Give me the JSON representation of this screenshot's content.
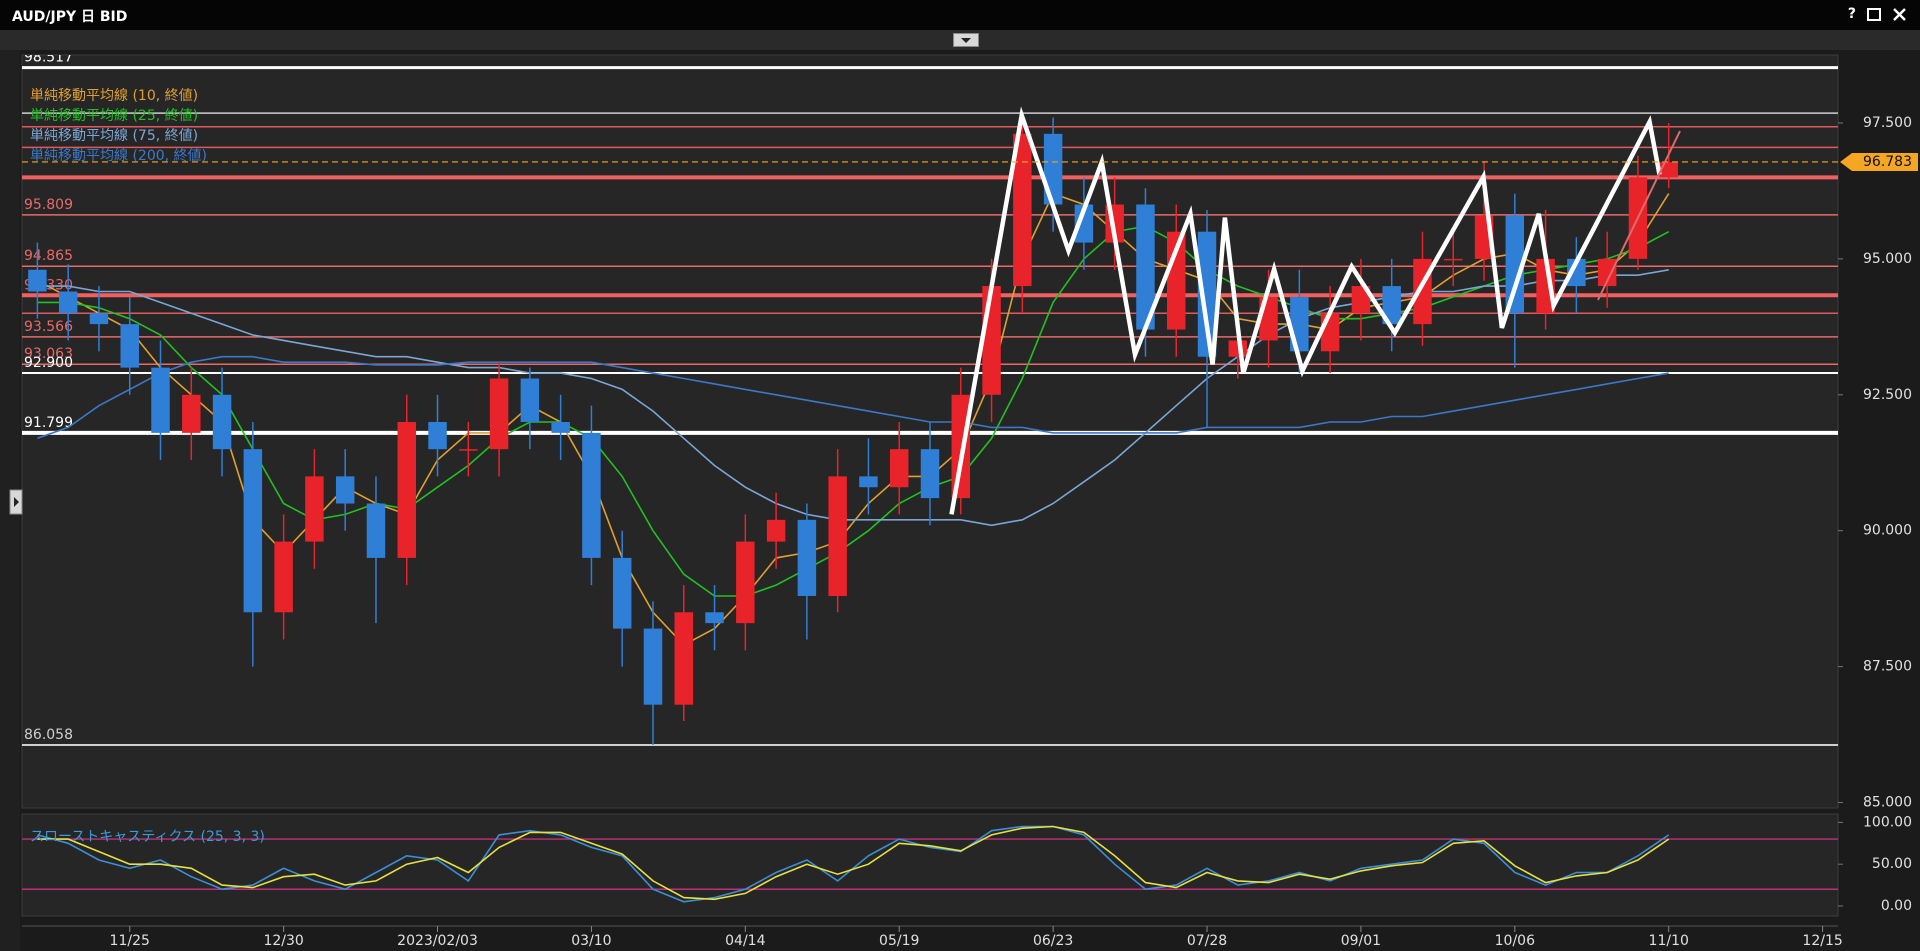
{
  "window": {
    "title": "AUD/JPY 日 BID",
    "help": "?"
  },
  "chart_data": [
    {
      "type": "candlestick",
      "categories": [
        null,
        null,
        null,
        "11/25",
        null,
        null,
        null,
        null,
        "12/30",
        null,
        null,
        null,
        null,
        "2023/02/03",
        null,
        null,
        null,
        null,
        "03/10",
        null,
        null,
        null,
        null,
        "04/14",
        null,
        null,
        null,
        null,
        "05/19",
        null,
        null,
        null,
        null,
        "06/23",
        null,
        null,
        null,
        null,
        "07/28",
        null,
        null,
        null,
        null,
        "09/01",
        null,
        null,
        null,
        null,
        "10/06",
        null,
        null,
        null,
        null,
        "11/10",
        null,
        null,
        null,
        null,
        "12/15"
      ],
      "open": [
        94.8,
        94.4,
        94.0,
        93.8,
        93.0,
        91.8,
        92.5,
        91.5,
        88.5,
        89.8,
        91.0,
        90.5,
        89.5,
        92.0,
        91.5,
        91.5,
        92.8,
        92.0,
        91.8,
        89.5,
        88.2,
        86.8,
        88.5,
        88.3,
        89.8,
        90.2,
        88.8,
        91.0,
        90.8,
        91.5,
        90.6,
        92.5,
        94.5,
        97.3,
        96.0,
        95.3,
        96.0,
        93.7,
        95.5,
        93.2,
        93.5,
        94.3,
        93.3,
        94.0,
        94.5,
        93.8,
        95.0,
        95.0,
        95.8,
        94.0,
        95.0,
        94.5,
        95.0,
        96.5,
        null,
        null,
        null,
        null,
        null
      ],
      "high": [
        95.3,
        94.9,
        94.5,
        94.3,
        93.5,
        93.0,
        93.0,
        92.0,
        90.3,
        91.5,
        91.5,
        91.0,
        92.5,
        92.5,
        92.0,
        93.1,
        93.0,
        92.5,
        92.3,
        90.0,
        88.7,
        89.0,
        89.0,
        90.3,
        90.7,
        90.5,
        91.5,
        91.7,
        92.0,
        92.0,
        93.0,
        95.0,
        97.7,
        97.6,
        96.5,
        96.5,
        96.3,
        96.0,
        95.9,
        94.0,
        94.8,
        94.8,
        94.5,
        95.0,
        95.0,
        95.5,
        95.6,
        96.8,
        96.2,
        95.9,
        95.4,
        95.5,
        96.9,
        97.5,
        null,
        null,
        null,
        null,
        null
      ],
      "low": [
        93.9,
        93.5,
        93.3,
        92.5,
        91.3,
        91.3,
        91.0,
        87.5,
        88.0,
        89.3,
        90.0,
        88.3,
        89.0,
        91.0,
        91.0,
        91.0,
        91.5,
        91.3,
        89.0,
        87.5,
        86.06,
        86.5,
        87.8,
        87.8,
        89.3,
        88.0,
        88.5,
        90.3,
        90.3,
        90.1,
        90.3,
        92.0,
        94.0,
        95.5,
        94.8,
        94.8,
        93.2,
        93.2,
        91.9,
        92.8,
        93.0,
        92.9,
        92.9,
        93.5,
        93.3,
        93.4,
        94.5,
        94.6,
        93.0,
        93.7,
        94.0,
        94.1,
        94.8,
        96.3,
        null,
        null,
        null,
        null,
        null
      ],
      "close": [
        94.4,
        94.0,
        93.8,
        93.0,
        91.8,
        92.5,
        91.5,
        88.5,
        89.8,
        91.0,
        90.5,
        89.5,
        92.0,
        91.5,
        91.5,
        92.8,
        92.0,
        91.8,
        89.5,
        88.2,
        86.8,
        88.5,
        88.3,
        89.8,
        90.2,
        88.8,
        91.0,
        90.8,
        91.5,
        90.6,
        92.5,
        94.5,
        97.3,
        96.0,
        95.3,
        96.0,
        93.7,
        95.5,
        93.2,
        93.5,
        94.3,
        93.3,
        94.0,
        94.5,
        93.8,
        95.0,
        95.0,
        95.8,
        94.0,
        95.0,
        94.5,
        95.0,
        96.5,
        96.78,
        null,
        null,
        null,
        null,
        null
      ],
      "up_color": "#e8242a",
      "down_color": "#2f7fd6",
      "ylim": [
        84.9,
        98.75
      ],
      "yticks": [
        {
          "value": 97.5,
          "label": "97.500"
        },
        {
          "value": 95,
          "label": "95.000"
        },
        {
          "value": 92.5,
          "label": "92.500"
        },
        {
          "value": 90,
          "label": "90.000"
        },
        {
          "value": 87.5,
          "label": "87.500"
        },
        {
          "value": 85,
          "label": "85.000"
        }
      ],
      "last_price": 96.783,
      "last_color": "#f5a623",
      "series": [
        {
          "name": "単純移動平均線 (10, 終値)",
          "color": "#e0a030",
          "values": [
            94.6,
            94.3,
            94.0,
            93.7,
            93.0,
            92.5,
            92.0,
            90.2,
            89.6,
            90.2,
            90.8,
            90.5,
            90.3,
            91.3,
            91.8,
            91.8,
            92.3,
            92.0,
            91.0,
            89.5,
            88.5,
            87.9,
            88.2,
            88.8,
            89.5,
            89.6,
            89.8,
            90.5,
            91.0,
            91.0,
            91.5,
            92.8,
            95.0,
            96.2,
            96.0,
            95.5,
            95.0,
            94.8,
            94.6,
            93.9,
            93.8,
            93.8,
            93.7,
            94.1,
            94.2,
            94.3,
            94.7,
            95.0,
            95.1,
            94.8,
            94.7,
            94.8,
            95.3,
            96.2,
            null,
            null,
            null,
            null,
            null
          ]
        },
        {
          "name": "単純移動平均線 (25, 終値)",
          "color": "#22c022",
          "values": [
            94.2,
            94.2,
            94.1,
            93.9,
            93.6,
            93.0,
            92.5,
            91.5,
            90.5,
            90.2,
            90.3,
            90.5,
            90.4,
            90.8,
            91.2,
            91.7,
            92.0,
            92.0,
            91.7,
            91.0,
            90.0,
            89.2,
            88.8,
            88.8,
            89.0,
            89.3,
            89.6,
            90.0,
            90.5,
            90.8,
            91.0,
            91.7,
            92.8,
            94.2,
            95.0,
            95.5,
            95.6,
            95.3,
            94.8,
            94.5,
            94.3,
            94.1,
            93.9,
            93.9,
            94.0,
            94.1,
            94.3,
            94.5,
            94.7,
            94.8,
            94.9,
            95.0,
            95.2,
            95.5,
            null,
            null,
            null,
            null,
            null
          ]
        },
        {
          "name": "単純移動平均線 (75, 終値)",
          "color": "#7aa6d6",
          "values": [
            94.5,
            94.5,
            94.4,
            94.4,
            94.2,
            94.0,
            93.8,
            93.6,
            93.5,
            93.4,
            93.3,
            93.2,
            93.2,
            93.1,
            93.0,
            93.0,
            92.9,
            92.9,
            92.8,
            92.6,
            92.2,
            91.7,
            91.2,
            90.8,
            90.5,
            90.3,
            90.2,
            90.2,
            90.2,
            90.2,
            90.2,
            90.1,
            90.2,
            90.5,
            90.9,
            91.3,
            91.8,
            92.3,
            92.8,
            93.2,
            93.6,
            93.9,
            94.1,
            94.2,
            94.3,
            94.4,
            94.4,
            94.5,
            94.5,
            94.6,
            94.6,
            94.7,
            94.7,
            94.8,
            null,
            null,
            null,
            null,
            null
          ]
        },
        {
          "name": "単純移動平均線 (200, 終値)",
          "color": "#3b78c8",
          "values": [
            91.7,
            91.9,
            92.3,
            92.6,
            92.9,
            93.1,
            93.2,
            93.2,
            93.1,
            93.1,
            93.1,
            93.05,
            93.05,
            93.05,
            93.1,
            93.1,
            93.1,
            93.1,
            93.1,
            93.0,
            92.9,
            92.8,
            92.7,
            92.6,
            92.5,
            92.4,
            92.3,
            92.2,
            92.1,
            92.0,
            92.0,
            91.9,
            91.9,
            91.8,
            91.8,
            91.8,
            91.8,
            91.8,
            91.9,
            91.9,
            91.9,
            91.9,
            92.0,
            92.0,
            92.1,
            92.1,
            92.2,
            92.3,
            92.4,
            92.5,
            92.6,
            92.7,
            92.8,
            92.9,
            null,
            null,
            null,
            null,
            null
          ]
        }
      ],
      "levels": [
        {
          "value": 98.517,
          "label": "98.517",
          "color": "#ffffff",
          "width": 3
        },
        {
          "value": 97.68,
          "color": "#cfcfcf",
          "width": 1.5
        },
        {
          "value": 97.43,
          "color": "#e05a5a",
          "width": 1.5
        },
        {
          "value": 97.05,
          "color": "#e05a5a",
          "width": 1.5
        },
        {
          "value": 96.5,
          "color": "#f06060",
          "width": 4
        },
        {
          "value": 95.809,
          "label": "95.809",
          "color": "#e86a6a",
          "width": 1.5
        },
        {
          "value": 94.865,
          "label": "94.865",
          "color": "#e86a6a",
          "width": 1.5
        },
        {
          "value": 94.33,
          "label": "94.330",
          "color": "#f06060",
          "width": 4
        },
        {
          "value": 94.0,
          "color": "#e05a5a",
          "width": 1.5
        },
        {
          "value": 93.566,
          "label": "93.566",
          "color": "#e86a6a",
          "width": 1.5
        },
        {
          "value": 93.063,
          "label": "93.063",
          "color": "#e86a6a",
          "width": 1.5
        },
        {
          "value": 92.9,
          "label": "92.900",
          "color": "#ffffff",
          "width": 2
        },
        {
          "value": 91.799,
          "label": "91.799",
          "color": "#ffffff",
          "width": 4
        },
        {
          "value": 86.058,
          "label": "86.058",
          "color": "#cfcfcf",
          "width": 2
        }
      ],
      "zigzag": {
        "color": "#ffffff",
        "x": [
          29.7,
          31.98,
          33.5,
          34.58,
          35.66,
          37.46,
          38.18,
          38.58,
          39.18,
          40.18,
          41.1,
          42.7,
          44.1,
          46.98,
          47.58,
          48.78,
          49.26,
          52.38,
          52.7
        ],
        "y": [
          90.3,
          97.64,
          95.15,
          96.78,
          93.24,
          95.83,
          93.06,
          95.76,
          92.9,
          94.81,
          92.94,
          94.86,
          93.64,
          96.51,
          93.73,
          95.83,
          94.14,
          97.52,
          96.55
        ]
      }
    },
    {
      "type": "line",
      "title": "スローストキャスティクス (25, 3, 3)",
      "title_color": "#3a9ad8",
      "ylim": [
        -12,
        110
      ],
      "yticks": [
        {
          "value": 100,
          "label": "100.00"
        },
        {
          "value": 50,
          "label": "50.00"
        },
        {
          "value": 0,
          "label": "0.00"
        }
      ],
      "levels": [
        80,
        20
      ],
      "level_color": "#c0307a",
      "series": [
        {
          "color": "#3a8fd8",
          "values": [
            85,
            75,
            55,
            45,
            55,
            35,
            20,
            25,
            45,
            30,
            20,
            40,
            60,
            55,
            30,
            85,
            90,
            85,
            70,
            60,
            20,
            5,
            10,
            20,
            40,
            55,
            30,
            60,
            80,
            70,
            65,
            90,
            95,
            95,
            85,
            50,
            20,
            25,
            45,
            25,
            30,
            40,
            30,
            45,
            50,
            55,
            80,
            75,
            40,
            25,
            40,
            40,
            60,
            85,
            null,
            null,
            null,
            null,
            null
          ]
        },
        {
          "color": "#e6e040",
          "values": [
            80,
            80,
            65,
            50,
            50,
            45,
            25,
            22,
            35,
            38,
            25,
            30,
            50,
            58,
            40,
            70,
            88,
            88,
            75,
            62,
            30,
            10,
            8,
            15,
            35,
            50,
            38,
            50,
            75,
            72,
            66,
            85,
            93,
            95,
            88,
            60,
            28,
            22,
            40,
            30,
            28,
            38,
            32,
            42,
            48,
            52,
            75,
            78,
            48,
            28,
            36,
            40,
            55,
            80,
            null,
            null,
            null,
            null,
            null
          ]
        }
      ]
    }
  ]
}
